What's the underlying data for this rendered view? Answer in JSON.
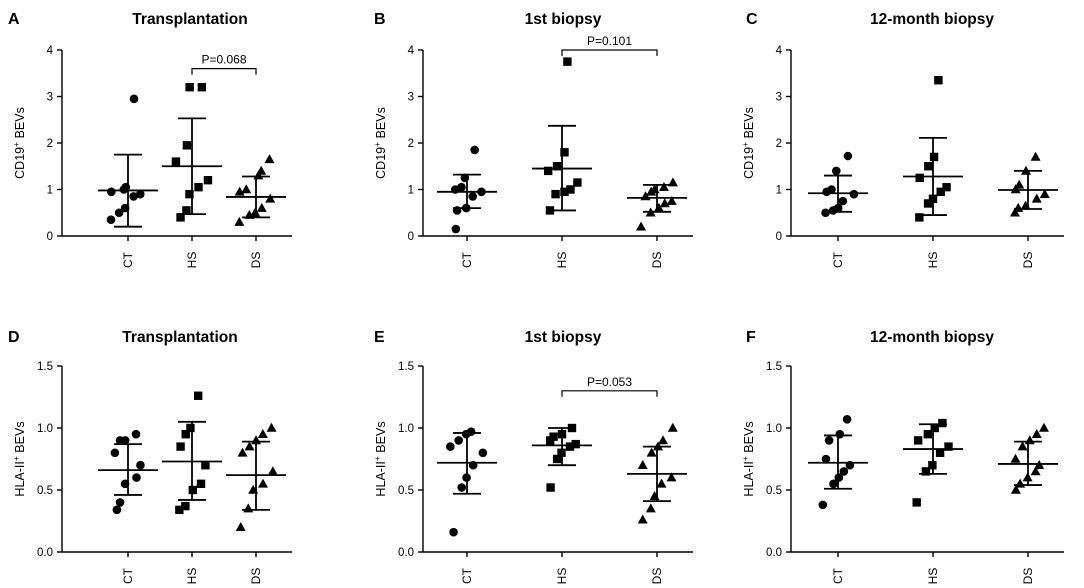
{
  "chart_data": [
    {
      "panel": "A",
      "type": "scatter",
      "title": "Transplantation",
      "ylabel": "CD19",
      "ylabel_sup": "+",
      "ylabel_suffix": " BEVs",
      "ylim": [
        0,
        4
      ],
      "yticks": [
        "0",
        "1",
        "2",
        "3",
        "4"
      ],
      "ytick_values": [
        0,
        1,
        2,
        3,
        4
      ],
      "categories": [
        "CT",
        "HS",
        "DS"
      ],
      "groups": [
        {
          "name": "CT",
          "marker": "circle",
          "mean": 0.98,
          "sd_low": 0.2,
          "sd_high": 1.75,
          "points": [
            0.35,
            0.5,
            0.6,
            0.85,
            0.9,
            0.95,
            1.0,
            1.05,
            2.95
          ]
        },
        {
          "name": "HS",
          "marker": "square",
          "mean": 1.5,
          "sd_low": 0.47,
          "sd_high": 2.53,
          "points": [
            0.4,
            0.55,
            0.9,
            1.05,
            1.2,
            1.6,
            1.95,
            3.2,
            3.2
          ]
        },
        {
          "name": "DS",
          "marker": "triangle",
          "mean": 0.84,
          "sd_low": 0.4,
          "sd_high": 1.28,
          "points": [
            0.3,
            0.45,
            0.5,
            0.6,
            0.8,
            0.95,
            1.0,
            1.3,
            1.4,
            1.65
          ]
        }
      ],
      "annotation": {
        "label": "P=0.068",
        "from": "HS",
        "to": "DS",
        "y": 3.6
      }
    },
    {
      "panel": "B",
      "type": "scatter",
      "title": "1st biopsy",
      "ylabel": "CD19",
      "ylabel_sup": "+",
      "ylabel_suffix": " BEVs",
      "ylim": [
        0,
        4
      ],
      "yticks": [
        "0",
        "1",
        "2",
        "3",
        "4"
      ],
      "ytick_values": [
        0,
        1,
        2,
        3,
        4
      ],
      "categories": [
        "CT",
        "HS",
        "DS"
      ],
      "groups": [
        {
          "name": "CT",
          "marker": "circle",
          "mean": 0.95,
          "sd_low": 0.6,
          "sd_high": 1.32,
          "points": [
            0.15,
            0.55,
            0.6,
            0.85,
            0.95,
            1.0,
            1.05,
            1.25,
            1.85
          ]
        },
        {
          "name": "HS",
          "marker": "square",
          "mean": 1.45,
          "sd_low": 0.55,
          "sd_high": 2.37,
          "points": [
            0.55,
            0.9,
            0.95,
            1.0,
            1.15,
            1.4,
            1.5,
            1.8,
            3.75
          ]
        },
        {
          "name": "DS",
          "marker": "triangle",
          "mean": 0.82,
          "sd_low": 0.52,
          "sd_high": 1.1,
          "points": [
            0.2,
            0.5,
            0.6,
            0.7,
            0.75,
            0.85,
            0.95,
            1.0,
            1.05,
            1.15
          ]
        }
      ],
      "annotation": {
        "label": "P=0.101",
        "from": "HS",
        "to": "DS",
        "y": 4.0
      }
    },
    {
      "panel": "C",
      "type": "scatter",
      "title": "12-month biopsy",
      "ylabel": "CD19",
      "ylabel_sup": "+",
      "ylabel_suffix": " BEVs",
      "ylim": [
        0,
        4
      ],
      "yticks": [
        "0",
        "1",
        "2",
        "3",
        "4"
      ],
      "ytick_values": [
        0,
        1,
        2,
        3,
        4
      ],
      "categories": [
        "CT",
        "HS",
        "DS"
      ],
      "groups": [
        {
          "name": "CT",
          "marker": "circle",
          "mean": 0.92,
          "sd_low": 0.52,
          "sd_high": 1.3,
          "points": [
            0.5,
            0.55,
            0.6,
            0.75,
            0.9,
            0.95,
            1.0,
            1.4,
            1.72
          ]
        },
        {
          "name": "HS",
          "marker": "square",
          "mean": 1.28,
          "sd_low": 0.45,
          "sd_high": 2.11,
          "points": [
            0.4,
            0.7,
            0.8,
            0.95,
            1.05,
            1.25,
            1.5,
            1.7,
            3.35
          ]
        },
        {
          "name": "DS",
          "marker": "triangle",
          "mean": 0.99,
          "sd_low": 0.58,
          "sd_high": 1.4,
          "points": [
            0.5,
            0.6,
            0.65,
            0.8,
            0.9,
            1.0,
            1.1,
            1.4,
            1.7
          ]
        }
      ]
    },
    {
      "panel": "D",
      "type": "scatter",
      "title": "Transplantation",
      "ylabel": "HLA-II",
      "ylabel_sup": "+",
      "ylabel_suffix": " BEVs",
      "ylim": [
        0,
        1.5
      ],
      "yticks": [
        "0.0",
        "0.5",
        "1.0",
        "1.5"
      ],
      "ytick_values": [
        0,
        0.5,
        1.0,
        1.5
      ],
      "categories": [
        "CT",
        "HS",
        "DS"
      ],
      "groups": [
        {
          "name": "CT",
          "marker": "circle",
          "mean": 0.66,
          "sd_low": 0.46,
          "sd_high": 0.87,
          "points": [
            0.34,
            0.4,
            0.55,
            0.6,
            0.7,
            0.8,
            0.9,
            0.9,
            0.95
          ]
        },
        {
          "name": "HS",
          "marker": "square",
          "mean": 0.73,
          "sd_low": 0.42,
          "sd_high": 1.05,
          "points": [
            0.34,
            0.37,
            0.5,
            0.55,
            0.7,
            0.85,
            0.95,
            1.0,
            1.26
          ]
        },
        {
          "name": "DS",
          "marker": "triangle",
          "mean": 0.62,
          "sd_low": 0.34,
          "sd_high": 0.89,
          "points": [
            0.2,
            0.35,
            0.5,
            0.55,
            0.65,
            0.8,
            0.85,
            0.9,
            0.95,
            1.0
          ]
        }
      ]
    },
    {
      "panel": "E",
      "type": "scatter",
      "title": "1st biopsy",
      "ylabel": "HLA-II",
      "ylabel_sup": "+",
      "ylabel_suffix": " BEVs",
      "ylim": [
        0,
        1.5
      ],
      "yticks": [
        "0.0",
        "0.5",
        "1.0",
        "1.5"
      ],
      "ytick_values": [
        0,
        0.5,
        1.0,
        1.5
      ],
      "categories": [
        "CT",
        "HS",
        "DS"
      ],
      "groups": [
        {
          "name": "CT",
          "marker": "circle",
          "mean": 0.72,
          "sd_low": 0.47,
          "sd_high": 0.96,
          "points": [
            0.16,
            0.52,
            0.6,
            0.7,
            0.8,
            0.85,
            0.9,
            0.95,
            0.97
          ]
        },
        {
          "name": "HS",
          "marker": "square",
          "mean": 0.86,
          "sd_low": 0.7,
          "sd_high": 1.0,
          "points": [
            0.52,
            0.75,
            0.8,
            0.85,
            0.87,
            0.9,
            0.93,
            0.95,
            1.0
          ]
        },
        {
          "name": "DS",
          "marker": "triangle",
          "mean": 0.63,
          "sd_low": 0.41,
          "sd_high": 0.85,
          "points": [
            0.26,
            0.35,
            0.45,
            0.55,
            0.6,
            0.7,
            0.8,
            0.85,
            0.9,
            1.0
          ]
        }
      ],
      "annotation": {
        "label": "P=0.053",
        "from": "HS",
        "to": "DS",
        "y": 1.3
      }
    },
    {
      "panel": "F",
      "type": "scatter",
      "title": "12-month biopsy",
      "ylabel": "HLA-II",
      "ylabel_sup": "+",
      "ylabel_suffix": " BEVs",
      "ylim": [
        0,
        1.5
      ],
      "yticks": [
        "0.0",
        "0.5",
        "1.0",
        "1.5"
      ],
      "ytick_values": [
        0,
        0.5,
        1.0,
        1.5
      ],
      "categories": [
        "CT",
        "HS",
        "DS"
      ],
      "groups": [
        {
          "name": "CT",
          "marker": "circle",
          "mean": 0.72,
          "sd_low": 0.51,
          "sd_high": 0.94,
          "points": [
            0.38,
            0.55,
            0.6,
            0.65,
            0.7,
            0.75,
            0.9,
            0.95,
            1.07
          ]
        },
        {
          "name": "HS",
          "marker": "square",
          "mean": 0.83,
          "sd_low": 0.63,
          "sd_high": 1.03,
          "points": [
            0.4,
            0.65,
            0.7,
            0.8,
            0.85,
            0.9,
            0.95,
            1.0,
            1.04
          ]
        },
        {
          "name": "DS",
          "marker": "triangle",
          "mean": 0.71,
          "sd_low": 0.54,
          "sd_high": 0.89,
          "points": [
            0.5,
            0.55,
            0.6,
            0.65,
            0.7,
            0.75,
            0.85,
            0.9,
            0.95,
            1.0
          ]
        }
      ]
    }
  ]
}
